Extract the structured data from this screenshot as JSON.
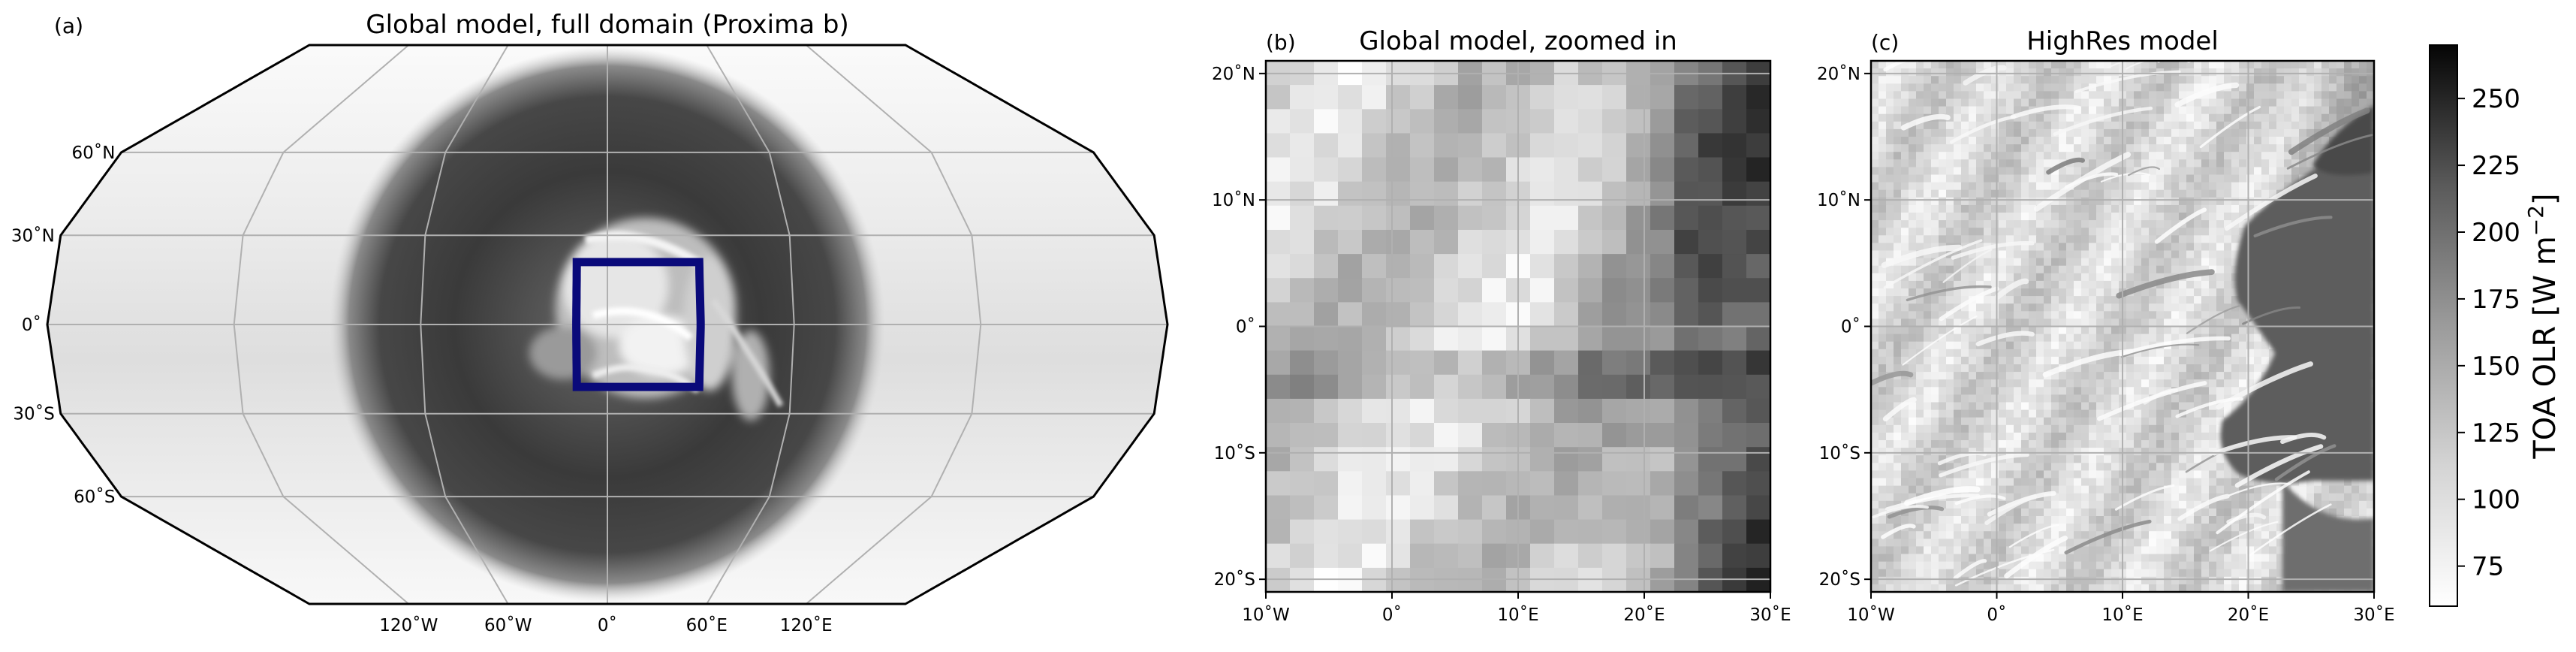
{
  "chart_data": [
    {
      "type": "heatmap",
      "panel_label": "(a)",
      "title": "Global model, full domain (Proxima b)",
      "projection": "robinson",
      "lon_range": [
        -180,
        180
      ],
      "lat_range": [
        -90,
        90
      ],
      "lat_ticks": [
        60,
        30,
        0,
        -30,
        -60
      ],
      "lat_tick_labels": [
        "60˚N",
        "30˚N",
        "0˚",
        "30˚S",
        "60˚S"
      ],
      "lon_ticks": [
        -120,
        -60,
        0,
        60,
        120
      ],
      "lon_tick_labels": [
        "120˚W",
        "60˚W",
        "0˚",
        "60˚E",
        "120˚E"
      ],
      "grid": true,
      "field": "TOA OLR, dark dayside disk centred on the substellar point (0˚, 0˚), bright cloudy region near the substellar point, bright nightside",
      "highlight_box": {
        "lon": [
          -10,
          30
        ],
        "lat": [
          -21,
          21
        ],
        "color": "#0a0a7a"
      }
    },
    {
      "type": "heatmap",
      "panel_label": "(b)",
      "title": "Global model, zoomed in",
      "lon_range": [
        -10,
        30
      ],
      "lat_range": [
        -21,
        21
      ],
      "x_ticks": [
        -10,
        0,
        10,
        20,
        30
      ],
      "x_tick_labels": [
        "10˚W",
        "0˚",
        "10˚E",
        "20˚E",
        "30˚E"
      ],
      "y_ticks": [
        20,
        10,
        0,
        -10,
        -20
      ],
      "y_tick_labels": [
        "20˚N",
        "10˚N",
        "0˚",
        "10˚S",
        "20˚S"
      ],
      "grid": true,
      "resolution": "coarse"
    },
    {
      "type": "heatmap",
      "panel_label": "(c)",
      "title": "HighRes model",
      "lon_range": [
        -10,
        30
      ],
      "lat_range": [
        -21,
        21
      ],
      "x_ticks": [
        -10,
        0,
        10,
        20,
        30
      ],
      "x_tick_labels": [
        "10˚W",
        "0˚",
        "10˚E",
        "20˚E",
        "30˚E"
      ],
      "y_ticks": [
        20,
        10,
        0,
        -10,
        -20
      ],
      "y_tick_labels": [
        "20˚N",
        "10˚N",
        "0˚",
        "10˚S",
        "20˚S"
      ],
      "grid": true,
      "resolution": "fine"
    }
  ],
  "colorbar": {
    "label_main": "TOA OLR [W m",
    "label_sup": "−2",
    "label_end": "]",
    "range": [
      60,
      270
    ],
    "ticks": [
      75,
      100,
      125,
      150,
      175,
      200,
      225,
      250
    ],
    "tick_labels": [
      "75",
      "100",
      "125",
      "150",
      "175",
      "200",
      "225",
      "250"
    ],
    "colormap": "Greys",
    "colormap_light": "#ffffff",
    "colormap_dark": "#000000"
  },
  "colors": {
    "box": "#0a0a7a",
    "grid": "#b0b0b0",
    "frame": "#000000"
  }
}
